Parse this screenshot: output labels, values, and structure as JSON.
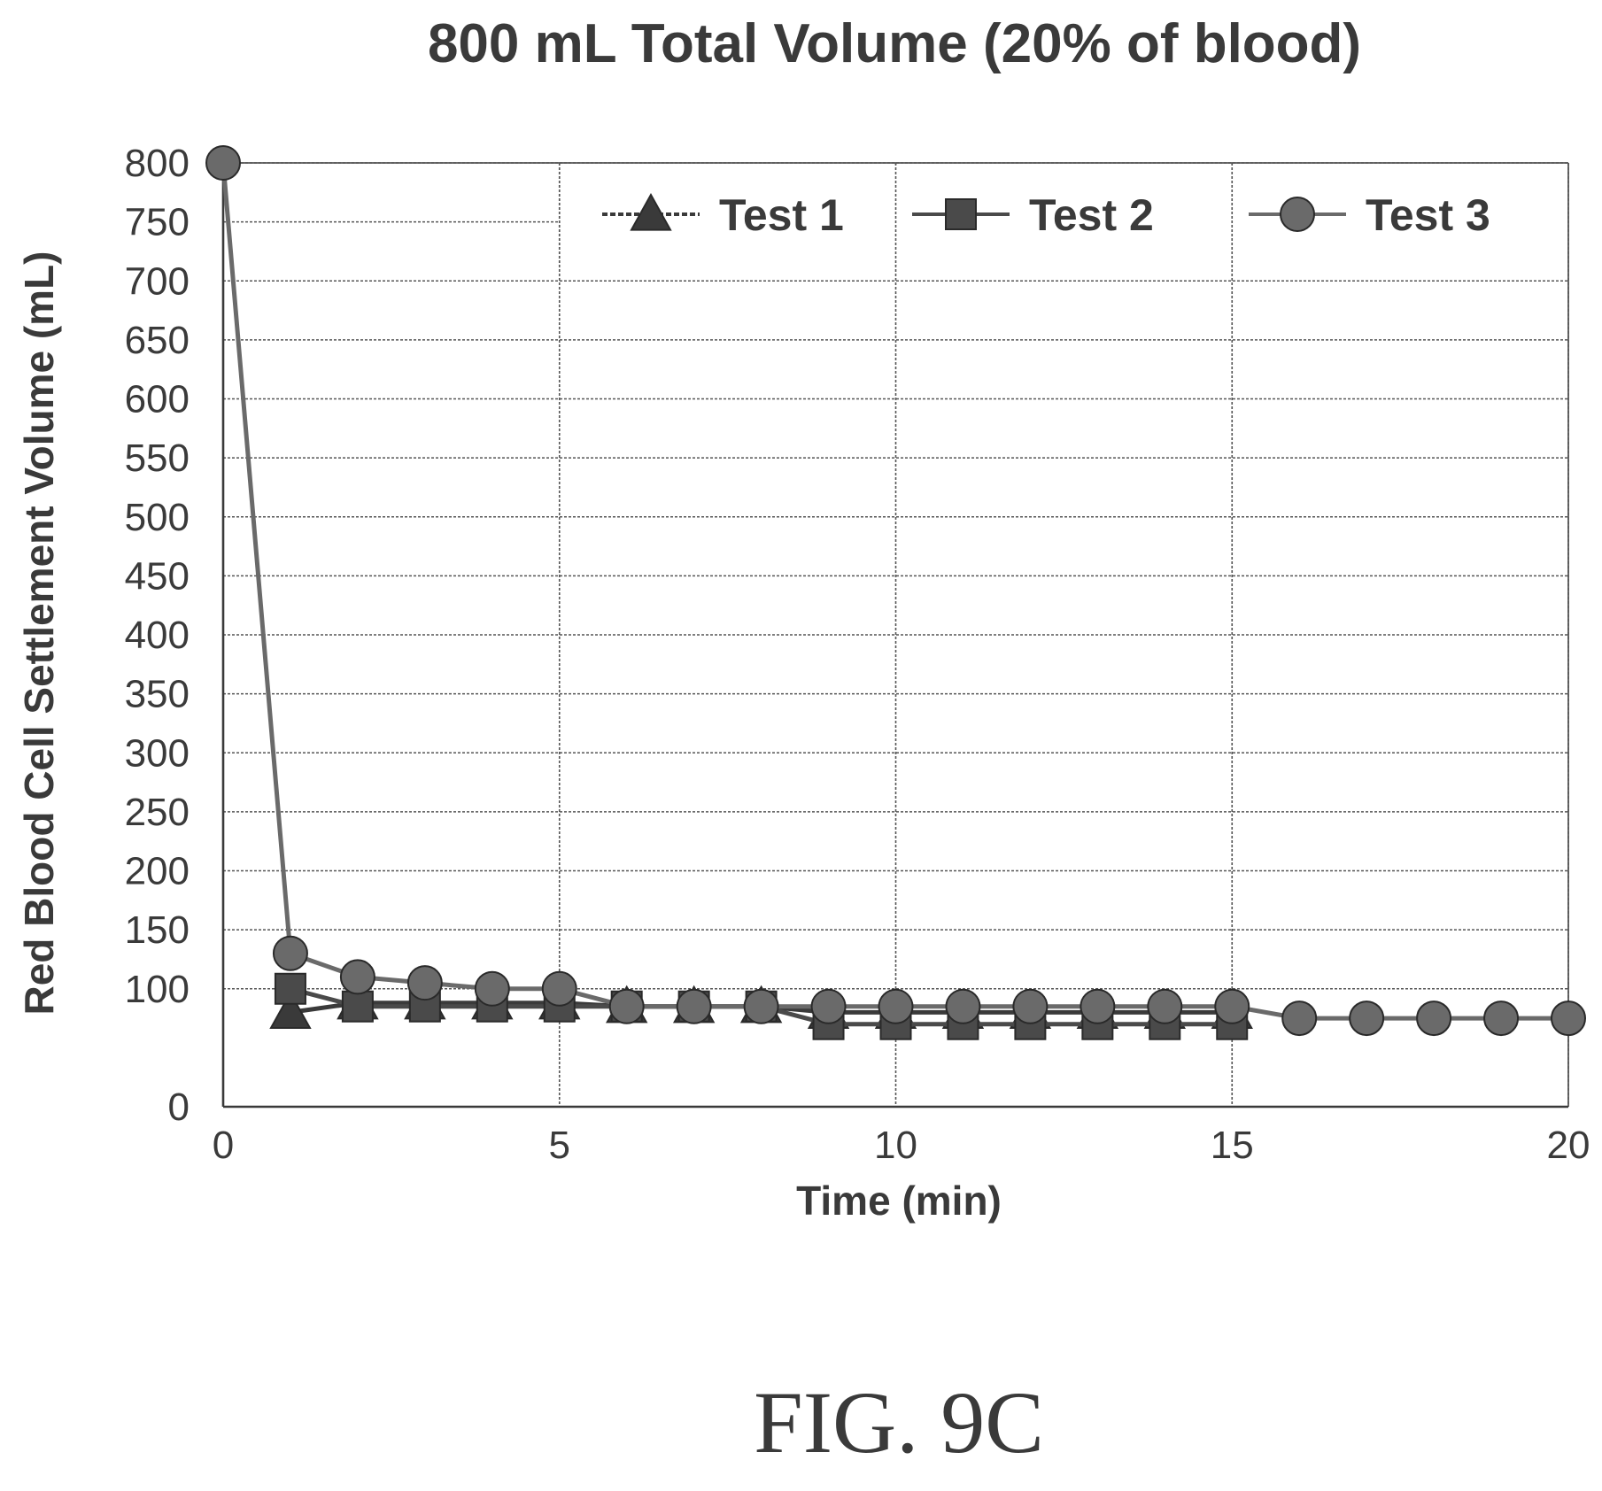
{
  "figure_label": "FIG. 9C",
  "chart_data": {
    "type": "line",
    "title": "800 mL Total Volume (20% of blood)",
    "xlabel": "Time (min)",
    "ylabel": "Red Blood Cell Settlement Volume (mL)",
    "xlim": [
      0,
      20
    ],
    "ylim": [
      0,
      800
    ],
    "x_ticks": [
      "0",
      "5",
      "10",
      "15",
      "20"
    ],
    "y_ticks": [
      "0",
      "100",
      "150",
      "200",
      "250",
      "300",
      "350",
      "400",
      "450",
      "500",
      "550",
      "600",
      "650",
      "700",
      "750",
      "800"
    ],
    "y_tick_values": [
      0,
      100,
      150,
      200,
      250,
      300,
      350,
      400,
      450,
      500,
      550,
      600,
      650,
      700,
      750,
      800
    ],
    "grid": true,
    "legend_position": "top-right",
    "series": [
      {
        "name": "Test 1",
        "marker": "triangle",
        "color": "#3a3a3a",
        "x": [
          1,
          2,
          3,
          4,
          5,
          6,
          7,
          8,
          9,
          10,
          11,
          12,
          13,
          14,
          15
        ],
        "y": [
          80,
          88,
          88,
          88,
          88,
          85,
          85,
          85,
          80,
          80,
          80,
          80,
          80,
          80,
          80
        ]
      },
      {
        "name": "Test 2",
        "marker": "square",
        "color": "#4a4a4a",
        "x": [
          1,
          2,
          3,
          4,
          5,
          6,
          7,
          8,
          9,
          10,
          11,
          12,
          13,
          14,
          15
        ],
        "y": [
          100,
          85,
          85,
          85,
          85,
          85,
          85,
          85,
          70,
          70,
          70,
          70,
          70,
          70,
          70
        ]
      },
      {
        "name": "Test 3",
        "marker": "circle",
        "color": "#6a6a6a",
        "x": [
          0,
          1,
          2,
          3,
          4,
          5,
          6,
          7,
          8,
          9,
          10,
          11,
          12,
          13,
          14,
          15,
          16,
          17,
          18,
          19,
          20
        ],
        "y": [
          800,
          130,
          110,
          105,
          100,
          100,
          85,
          85,
          85,
          85,
          85,
          85,
          85,
          85,
          85,
          85,
          75,
          75,
          75,
          75,
          75
        ]
      }
    ]
  }
}
